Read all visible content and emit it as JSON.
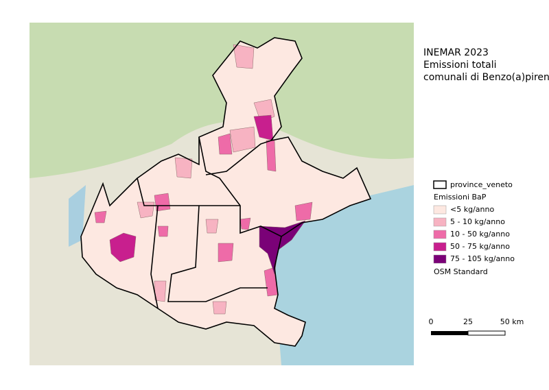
{
  "title": {
    "lines": [
      "INEMAR 2023",
      "Emissioni totali",
      "comunali di Benzo(a)pirene"
    ]
  },
  "legend": {
    "layer": "province_veneto",
    "group": "Emissioni BaP",
    "classes": [
      {
        "label": "<5 kg/anno",
        "color": "#fde8e1"
      },
      {
        "label": "5 - 10 kg/anno",
        "color": "#f7b3c2"
      },
      {
        "label": "10 - 50 kg/anno",
        "color": "#ee6ba8"
      },
      {
        "label": "50 - 75 kg/anno",
        "color": "#c81f8e"
      },
      {
        "label": "75 - 105 kg/anno",
        "color": "#7a0177"
      }
    ],
    "basemap": "OSM Standard"
  },
  "scale_bar": {
    "labels": [
      "0",
      "25",
      "50 km"
    ]
  }
}
